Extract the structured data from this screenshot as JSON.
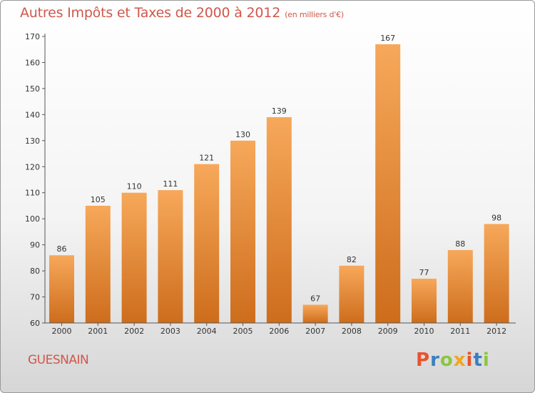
{
  "header": {
    "title": "Autres Impôts et Taxes de 2000 à 2012",
    "unit": "(en milliers d'€)"
  },
  "footer": {
    "commune": "GUESNAIN",
    "logo_text": "Proxiti"
  },
  "colors": {
    "title": "#d0574a",
    "bar_light": "#f7a85a",
    "bar_dark": "#cd6d1c",
    "logo_letters": [
      "#e8532c",
      "#3a7fc1",
      "#8cc63f",
      "#f2a51e",
      "#e8532c",
      "#3a7fc1",
      "#8cc63f"
    ]
  },
  "chart_data": {
    "type": "bar",
    "title": "Autres Impôts et Taxes de 2000 à 2012",
    "subtitle": "(en milliers d'€)",
    "categories": [
      "2000",
      "2001",
      "2002",
      "2003",
      "2004",
      "2005",
      "2006",
      "2007",
      "2008",
      "2009",
      "2010",
      "2011",
      "2012"
    ],
    "values": [
      86,
      105,
      110,
      111,
      121,
      130,
      139,
      67,
      82,
      167,
      77,
      88,
      98
    ],
    "ylim": [
      60,
      170
    ],
    "yticks": [
      60,
      70,
      80,
      90,
      100,
      110,
      120,
      130,
      140,
      150,
      160,
      170
    ],
    "xlabel": "",
    "ylabel": "",
    "grid": false
  }
}
